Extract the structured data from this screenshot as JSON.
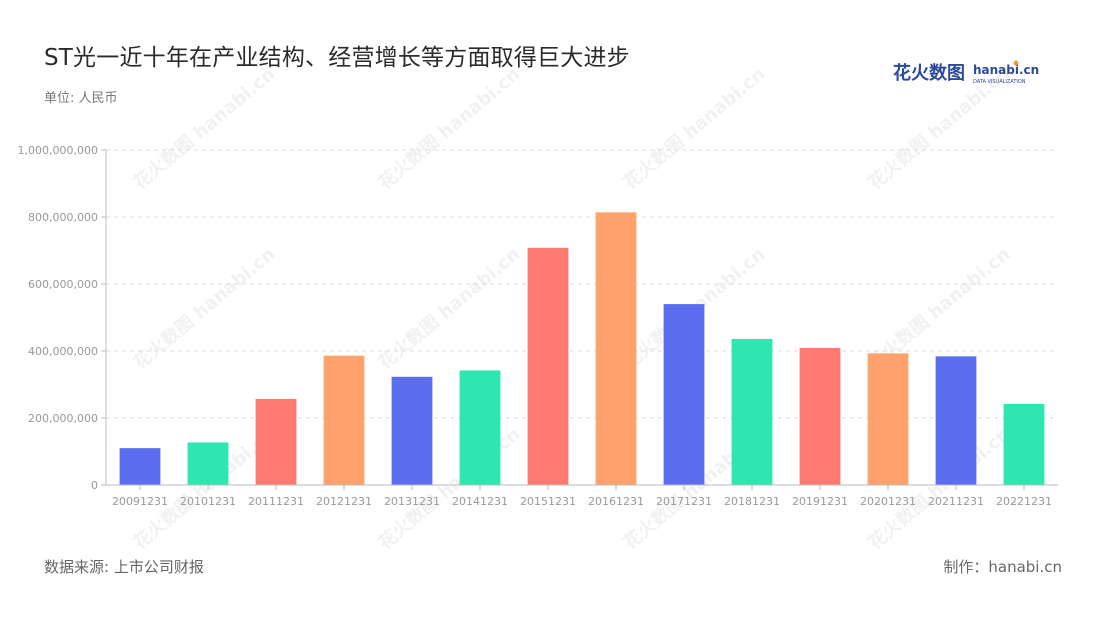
{
  "header": {
    "title": "ST光一近十年在产业结构、经营增长等方面取得巨大进步",
    "unit": "单位: 人民币"
  },
  "brand": {
    "logo_cn": "花火数图",
    "logo_en": "hanabi.cn",
    "logo_sub": "DATA VISUALIZATION",
    "primary_color": "#2d4a9a",
    "accent_color": "#f39c33"
  },
  "footer": {
    "source": "数据来源: 上市公司财报",
    "credit": "制作：hanabi.cn"
  },
  "chart_data": {
    "type": "bar",
    "categories": [
      "20091231",
      "20101231",
      "20111231",
      "20121231",
      "20131231",
      "20141231",
      "20151231",
      "20161231",
      "20171231",
      "20181231",
      "20191231",
      "20201231",
      "20211231",
      "20221231"
    ],
    "values": [
      110000000,
      127000000,
      257000000,
      386000000,
      323000000,
      342000000,
      708000000,
      814000000,
      540000000,
      436000000,
      409000000,
      393000000,
      384000000,
      242000000
    ],
    "colors": [
      "#5b6ef0",
      "#2ee6b0",
      "#ff7a70",
      "#ffa26e",
      "#5b6ef0",
      "#2ee6b0",
      "#ff7a70",
      "#ffa26e",
      "#5b6ef0",
      "#2ee6b0",
      "#ff7a70",
      "#ffa26e",
      "#5b6ef0",
      "#2ee6b0"
    ],
    "yticks": [
      0,
      200000000,
      400000000,
      600000000,
      800000000,
      1000000000
    ],
    "ytick_labels": [
      "0",
      "200,000,000",
      "400,000,000",
      "600,000,000",
      "800,000,000",
      "1,000,000,000"
    ],
    "ylim": [
      0,
      1000000000
    ],
    "xlabel": "",
    "ylabel": "",
    "grid": true,
    "grid_color": "#dddddd",
    "axis_color": "#bbbbbb"
  }
}
